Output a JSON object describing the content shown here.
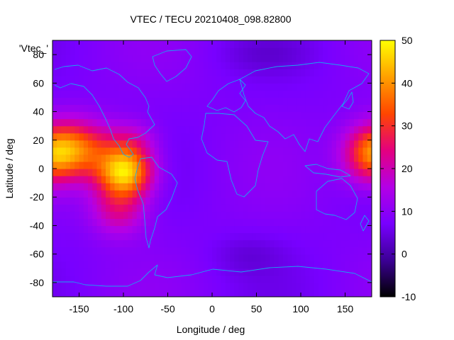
{
  "chart_data": {
    "type": "heatmap",
    "title": "VTEC / TECU 20210408_098.82800",
    "xlabel": "Longitude / deg",
    "ylabel": "Latitude / deg",
    "series_label": "'Vtec_'",
    "xlim": [
      -180,
      180
    ],
    "ylim": [
      -90,
      90
    ],
    "x_ticks": [
      -150,
      -100,
      -50,
      0,
      50,
      100,
      150
    ],
    "y_ticks": [
      -80,
      -60,
      -40,
      -20,
      0,
      20,
      40,
      60,
      80
    ],
    "colorbar": {
      "range": [
        -10,
        50
      ],
      "ticks": [
        -10,
        0,
        10,
        20,
        30,
        40,
        50
      ],
      "palette": [
        "#000000",
        "#3c0096",
        "#7800ff",
        "#b400e6",
        "#e4007e",
        "#ff4600",
        "#ffa000",
        "#ffff00"
      ]
    },
    "background_vtec": 8,
    "hotspots": [
      {
        "name": "equatorial-peak-south-america",
        "lon": -98,
        "lat": -2,
        "sx": 22,
        "sy": 12,
        "amp": 38
      },
      {
        "name": "equatorial-band-pacific",
        "lon": -150,
        "lat": 14,
        "sx": 28,
        "sy": 14,
        "amp": 24
      },
      {
        "name": "southern-anomaly-crest",
        "lon": -105,
        "lat": -28,
        "sx": 22,
        "sy": 13,
        "amp": 15
      },
      {
        "name": "northern-anomaly-crest",
        "lon": -90,
        "lat": 20,
        "sx": 20,
        "sy": 10,
        "amp": 10
      },
      {
        "name": "west-pacific-wrap",
        "lon": 178,
        "lat": 10,
        "sx": 22,
        "sy": 14,
        "amp": 22
      }
    ]
  }
}
